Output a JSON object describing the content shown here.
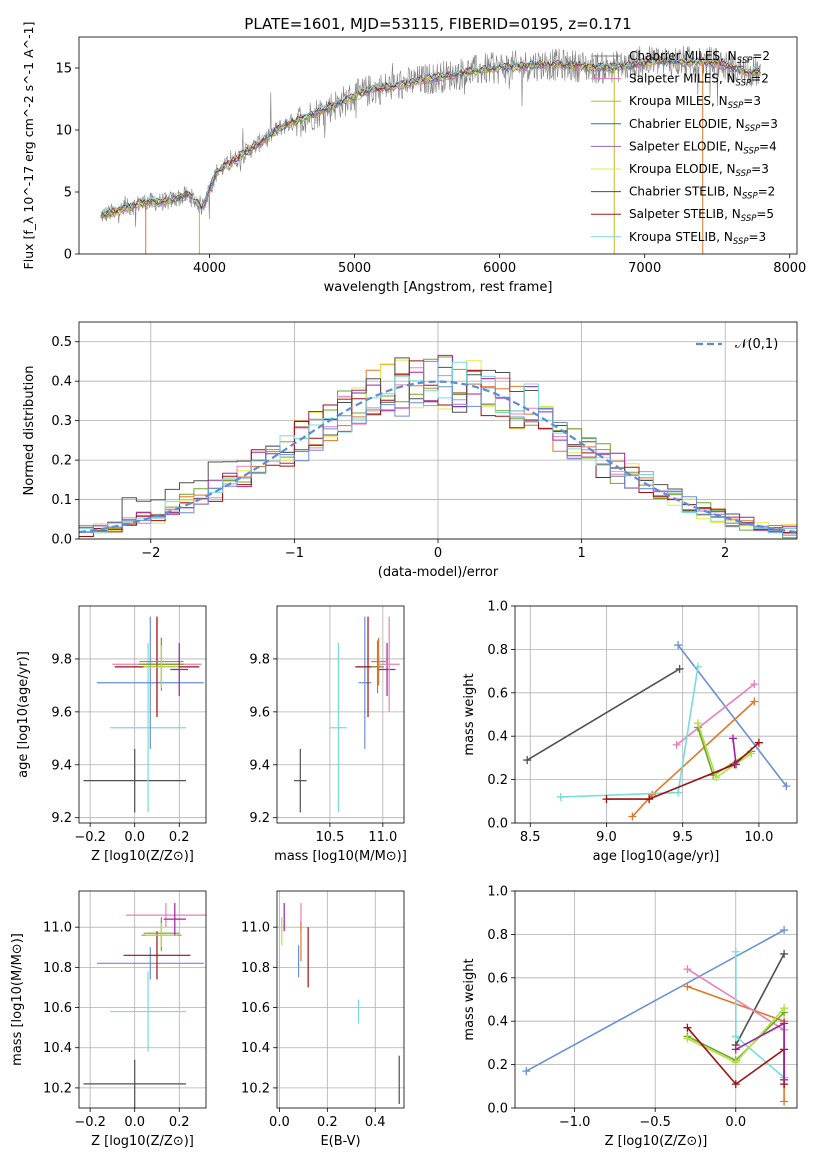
{
  "figure_title": "PLATE=1601, MJD=53115, FIBERID=0195, z=0.171",
  "colors": {
    "Chabrier MILES": "#7f7f7f",
    "Salpeter MILES": "#e377c2",
    "Kroupa MILES": "#bcbd22",
    "Chabrier ELODIE": "#1f77b4",
    "Salpeter ELODIE": "#9467bd",
    "Kroupa ELODIE": "#e8e840",
    "Chabrier STELIB": "#4d4d4d",
    "Salpeter STELIB": "#a11f1f",
    "Kroupa STELIB": "#7fd6dc",
    "orange": "#e0782a",
    "blue": "#6a8fd8",
    "green": "#6aa82a",
    "pink": "#e880b8",
    "darkred": "#a00f0f",
    "cyan": "#78dcdc",
    "purple": "#a020a0",
    "lime": "#b5e040",
    "gray": "#505050"
  },
  "chart_data": [
    {
      "type": "line",
      "title": "PLATE=1601, MJD=53115, FIBERID=0195, z=0.171",
      "xlabel": "wavelength [Angstrom, rest frame]",
      "ylabel": "Flux [f_λ 10^-17 erg cm^-2 s^-1 A^-1]",
      "xlim": [
        3100,
        8050
      ],
      "ylim": [
        0,
        17.5
      ],
      "xticks": [
        "4000",
        "5000",
        "6000",
        "7000",
        "8000"
      ],
      "yticks": [
        "0",
        "5",
        "10",
        "15"
      ],
      "legend": [
        {
          "label": "Chabrier MILES, N_SSP=2",
          "text": "Chabrier MILES, N",
          "sub": "SSP",
          "tail": "=2"
        },
        {
          "label": "Salpeter MILES, N_SSP=2",
          "text": "Salpeter MILES, N",
          "sub": "SSP",
          "tail": "=2"
        },
        {
          "label": "Kroupa MILES, N_SSP=3",
          "text": "Kroupa MILES, N",
          "sub": "SSP",
          "tail": "=3"
        },
        {
          "label": "Chabrier ELODIE, N_SSP=3",
          "text": "Chabrier ELODIE, N",
          "sub": "SSP",
          "tail": "=3"
        },
        {
          "label": "Salpeter ELODIE, N_SSP=4",
          "text": "Salpeter ELODIE, N",
          "sub": "SSP",
          "tail": "=4"
        },
        {
          "label": "Kroupa ELODIE, N_SSP=3",
          "text": "Kroupa ELODIE, N",
          "sub": "SSP",
          "tail": "=3"
        },
        {
          "label": "Chabrier STELIB, N_SSP=2",
          "text": "Chabrier STELIB, N",
          "sub": "SSP",
          "tail": "=2"
        },
        {
          "label": "Salpeter STELIB, N_SSP=5",
          "text": "Salpeter STELIB, N",
          "sub": "SSP",
          "tail": "=5"
        },
        {
          "label": "Kroupa STELIB, N_SSP=3",
          "text": "Kroupa STELIB, N",
          "sub": "SSP",
          "tail": "=3"
        }
      ],
      "legend_placement": "upper-right",
      "spectrum_anchors": [
        [
          3250,
          3.1
        ],
        [
          3400,
          3.6
        ],
        [
          3550,
          4.2
        ],
        [
          3700,
          4.2
        ],
        [
          3850,
          4.8
        ],
        [
          3950,
          3.8
        ],
        [
          4050,
          6.6
        ],
        [
          4200,
          7.8
        ],
        [
          4350,
          9.0
        ],
        [
          4500,
          10.3
        ],
        [
          4700,
          11.2
        ],
        [
          4900,
          12.2
        ],
        [
          5100,
          13.2
        ],
        [
          5300,
          13.6
        ],
        [
          5500,
          14.1
        ],
        [
          5700,
          14.5
        ],
        [
          5900,
          14.9
        ],
        [
          6100,
          15.1
        ],
        [
          6300,
          15.3
        ],
        [
          6500,
          15.2
        ],
        [
          6700,
          15.0
        ],
        [
          6900,
          15.2
        ],
        [
          7100,
          15.6
        ],
        [
          7300,
          15.5
        ],
        [
          7500,
          15.4
        ],
        [
          7700,
          14.7
        ]
      ]
    },
    {
      "type": "histogram",
      "xlabel": "(data-model)/error",
      "ylabel": "Normed distribution",
      "xlim": [
        -2.5,
        2.5
      ],
      "ylim": [
        0,
        0.55
      ],
      "xticks": [
        "−2",
        "−1",
        "0",
        "1",
        "2"
      ],
      "yticks": [
        "0.0",
        "0.1",
        "0.2",
        "0.3",
        "0.4",
        "0.5"
      ],
      "grid": true,
      "legend": {
        "label": "𝒩(0,1)",
        "placement": "upper-right"
      },
      "bin_width": 0.1
    },
    {
      "type": "scatter",
      "xlabel": "Z [log10(Z/Z⊙)]",
      "ylabel": "age [log10(age/yr)]",
      "xlim": [
        -0.25,
        0.32
      ],
      "ylim": [
        9.18,
        10.0
      ],
      "xticks": [
        "−0.2",
        "0.0",
        "0.2"
      ],
      "yticks": [
        "9.2",
        "9.4",
        "9.6",
        "9.8"
      ],
      "points": [
        {
          "x": 0.0,
          "y": 9.34,
          "xerr": 0.23,
          "yerr": 0.12,
          "color": "gray"
        },
        {
          "x": 0.06,
          "y": 9.54,
          "xerr": 0.17,
          "yerr": 0.32,
          "color": "cyan"
        },
        {
          "x": 0.07,
          "y": 9.71,
          "xerr": 0.24,
          "yerr": 0.25,
          "color": "blue"
        },
        {
          "x": 0.1,
          "y": 9.78,
          "xerr": 0.2,
          "yerr": 0.18,
          "color": "pink"
        },
        {
          "x": 0.1,
          "y": 9.77,
          "xerr": 0.19,
          "yerr": 0.19,
          "color": "darkred"
        },
        {
          "x": 0.12,
          "y": 9.79,
          "xerr": 0.1,
          "yerr": 0.09,
          "color": "orange"
        },
        {
          "x": 0.12,
          "y": 9.78,
          "xerr": 0.1,
          "yerr": 0.1,
          "color": "green"
        },
        {
          "x": 0.12,
          "y": 9.77,
          "xerr": 0.08,
          "yerr": 0.08,
          "color": "lime"
        },
        {
          "x": 0.2,
          "y": 9.76,
          "xerr": 0.04,
          "yerr": 0.1,
          "color": "purple"
        }
      ]
    },
    {
      "type": "scatter",
      "xlabel": "mass [log10(M/M⊙)]",
      "ylabel": "",
      "xlim": [
        10.0,
        11.2
      ],
      "ylim": [
        9.18,
        10.0
      ],
      "xticks": [
        "10.5",
        "11.0"
      ],
      "yticks": [
        "9.2",
        "9.4",
        "9.6",
        "9.8"
      ],
      "points": [
        {
          "x": 10.22,
          "y": 9.34,
          "xerr": 0.06,
          "yerr": 0.12,
          "color": "gray"
        },
        {
          "x": 10.58,
          "y": 9.54,
          "xerr": 0.08,
          "yerr": 0.32,
          "color": "cyan"
        },
        {
          "x": 10.83,
          "y": 9.71,
          "xerr": 0.06,
          "yerr": 0.25,
          "color": "blue"
        },
        {
          "x": 10.86,
          "y": 9.77,
          "xerr": 0.12,
          "yerr": 0.19,
          "color": "darkred"
        },
        {
          "x": 10.95,
          "y": 9.77,
          "xerr": 0.06,
          "yerr": 0.1,
          "color": "green"
        },
        {
          "x": 10.96,
          "y": 9.79,
          "xerr": 0.07,
          "yerr": 0.09,
          "color": "orange"
        },
        {
          "x": 11.04,
          "y": 9.76,
          "xerr": 0.08,
          "yerr": 0.1,
          "color": "purple"
        },
        {
          "x": 11.06,
          "y": 9.78,
          "xerr": 0.1,
          "yerr": 0.18,
          "color": "pink"
        }
      ]
    },
    {
      "type": "line",
      "xlabel": "age [log10(age/yr)]",
      "ylabel": "mass weight",
      "xlim": [
        8.4,
        10.25
      ],
      "ylim": [
        0,
        1.0
      ],
      "xticks": [
        "8.5",
        "9.0",
        "9.5",
        "10.0"
      ],
      "yticks": [
        "0.0",
        "0.2",
        "0.4",
        "0.6",
        "0.8",
        "1.0"
      ],
      "series": [
        {
          "color": "gray",
          "x": [
            8.48,
            9.48
          ],
          "y": [
            0.29,
            0.71
          ]
        },
        {
          "color": "blue",
          "x": [
            9.47,
            10.18
          ],
          "y": [
            0.82,
            0.17
          ]
        },
        {
          "color": "orange",
          "x": [
            9.17,
            9.3,
            9.97
          ],
          "y": [
            0.03,
            0.13,
            0.56
          ]
        },
        {
          "color": "pink",
          "x": [
            9.46,
            9.97
          ],
          "y": [
            0.36,
            0.64
          ]
        },
        {
          "color": "cyan",
          "x": [
            8.7,
            9.47,
            9.6
          ],
          "y": [
            0.12,
            0.14,
            0.72
          ]
        },
        {
          "color": "green",
          "x": [
            9.6,
            9.7,
            9.95
          ],
          "y": [
            0.44,
            0.22,
            0.33
          ]
        },
        {
          "color": "lime",
          "x": [
            9.6,
            9.72,
            9.95
          ],
          "y": [
            0.46,
            0.21,
            0.32
          ]
        },
        {
          "color": "darkred",
          "x": [
            9.0,
            9.28,
            9.84,
            10.0
          ],
          "y": [
            0.11,
            0.11,
            0.27,
            0.37
          ]
        },
        {
          "color": "purple",
          "x": [
            9.83,
            9.85
          ],
          "y": [
            0.39,
            0.27
          ]
        }
      ]
    },
    {
      "type": "scatter",
      "xlabel": "Z [log10(Z/Z⊙)]",
      "ylabel": "mass [log10(M/M⊙)]",
      "xlim": [
        -0.25,
        0.32
      ],
      "ylim": [
        10.1,
        11.18
      ],
      "xticks": [
        "−0.2",
        "0.0",
        "0.2"
      ],
      "yticks": [
        "10.2",
        "10.4",
        "10.6",
        "10.8",
        "11.0"
      ],
      "points": [
        {
          "x": 0.0,
          "y": 10.22,
          "xerr": 0.23,
          "yerr": 0.12,
          "color": "gray"
        },
        {
          "x": 0.06,
          "y": 10.58,
          "xerr": 0.17,
          "yerr": 0.2,
          "color": "cyan"
        },
        {
          "x": 0.07,
          "y": 10.82,
          "xerr": 0.24,
          "yerr": 0.08,
          "color": "blue"
        },
        {
          "x": 0.1,
          "y": 10.86,
          "xerr": 0.15,
          "yerr": 0.12,
          "color": "darkred"
        },
        {
          "x": 0.12,
          "y": 10.96,
          "xerr": 0.09,
          "yerr": 0.08,
          "color": "orange"
        },
        {
          "x": 0.12,
          "y": 10.97,
          "xerr": 0.08,
          "yerr": 0.08,
          "color": "green"
        },
        {
          "x": 0.12,
          "y": 10.96,
          "xerr": 0.07,
          "yerr": 0.06,
          "color": "lime"
        },
        {
          "x": 0.14,
          "y": 11.06,
          "xerr": 0.18,
          "yerr": 0.06,
          "color": "pink"
        },
        {
          "x": 0.18,
          "y": 11.04,
          "xerr": 0.05,
          "yerr": 0.08,
          "color": "purple"
        }
      ]
    },
    {
      "type": "scatter",
      "xlabel": "E(B-V)",
      "ylabel": "",
      "xlim": [
        -0.01,
        0.52
      ],
      "ylim": [
        10.1,
        11.18
      ],
      "xticks": [
        "0.0",
        "0.2",
        "0.4"
      ],
      "yticks": [
        "10.2",
        "10.4",
        "10.6",
        "10.8",
        "11.0"
      ],
      "points": [
        {
          "x": 0.01,
          "y": 10.98,
          "yerr": 0.07,
          "color": "lime"
        },
        {
          "x": 0.02,
          "y": 11.05,
          "yerr": 0.07,
          "color": "purple"
        },
        {
          "x": 0.08,
          "y": 10.83,
          "yerr": 0.08,
          "color": "blue"
        },
        {
          "x": 0.09,
          "y": 11.05,
          "yerr": 0.07,
          "color": "pink"
        },
        {
          "x": 0.09,
          "y": 10.93,
          "yerr": 0.1,
          "color": "orange"
        },
        {
          "x": 0.12,
          "y": 10.85,
          "yerr": 0.15,
          "color": "darkred"
        },
        {
          "x": 0.33,
          "y": 10.58,
          "yerr": 0.06,
          "color": "cyan"
        },
        {
          "x": 0.5,
          "y": 10.24,
          "yerr": 0.12,
          "color": "gray"
        }
      ]
    },
    {
      "type": "line",
      "xlabel": "Z [log10(Z/Z⊙)]",
      "ylabel": "mass weight",
      "xlim": [
        -1.37,
        0.38
      ],
      "ylim": [
        0,
        1.0
      ],
      "xticks": [
        "−1.0",
        "−0.5",
        "0.0"
      ],
      "yticks": [
        "0.0",
        "0.2",
        "0.4",
        "0.6",
        "0.8",
        "1.0"
      ],
      "series": [
        {
          "color": "blue",
          "x": [
            -1.3,
            0.3
          ],
          "y": [
            0.17,
            0.82
          ]
        },
        {
          "color": "gray",
          "x": [
            0.0,
            0.3
          ],
          "y": [
            0.29,
            0.71
          ]
        },
        {
          "color": "orange",
          "x": [
            -0.3,
            0.3,
            0.3
          ],
          "y": [
            0.56,
            0.4,
            0.03
          ]
        },
        {
          "color": "pink",
          "x": [
            -0.3,
            0.3
          ],
          "y": [
            0.64,
            0.36
          ]
        },
        {
          "color": "cyan",
          "x": [
            0.0,
            0.0,
            0.3
          ],
          "y": [
            0.72,
            0.33,
            0.14
          ]
        },
        {
          "color": "green",
          "x": [
            -0.3,
            0.0,
            0.3
          ],
          "y": [
            0.33,
            0.22,
            0.44
          ]
        },
        {
          "color": "lime",
          "x": [
            -0.3,
            0.0,
            0.3
          ],
          "y": [
            0.32,
            0.21,
            0.46
          ]
        },
        {
          "color": "darkred",
          "x": [
            -0.3,
            0.0,
            0.3,
            0.3
          ],
          "y": [
            0.37,
            0.11,
            0.27,
            0.11
          ]
        },
        {
          "color": "purple",
          "x": [
            0.0,
            0.3,
            0.3
          ],
          "y": [
            0.27,
            0.39,
            0.13
          ]
        }
      ]
    }
  ]
}
